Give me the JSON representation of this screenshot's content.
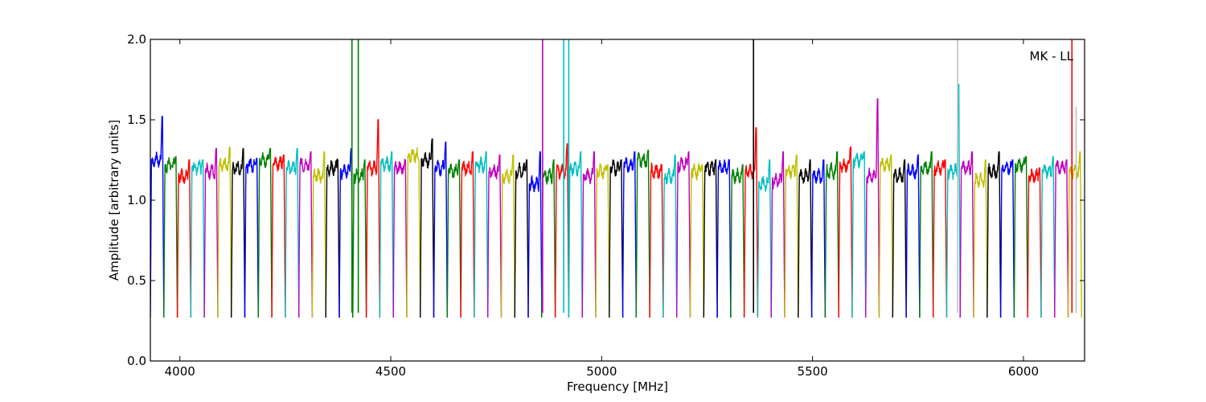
{
  "chart_data": {
    "type": "line",
    "title": "",
    "xlabel": "Frequency [MHz]",
    "ylabel": "Amplitude [arbitrary units]",
    "xlim": [
      3930,
      6145
    ],
    "ylim": [
      0,
      2.0
    ],
    "x_ticks": [
      4000,
      4500,
      5000,
      5500,
      6000
    ],
    "y_ticks": [
      0.0,
      0.5,
      1.0,
      1.5,
      2.0
    ],
    "y_tick_labels": [
      "0.0",
      "0.5",
      "1.0",
      "1.5",
      "2.0"
    ],
    "annotation": "MK - LL",
    "grid": false,
    "legend": "none",
    "series_colors": [
      "#0000ff",
      "#008000",
      "#ff0000",
      "#00bfbf",
      "#bf00bf",
      "#bfbf00",
      "#000000"
    ],
    "band_width_mhz": 32,
    "band_starts_mhz": [
      3930,
      3962,
      3994,
      4026,
      4058,
      4090,
      4122,
      4154,
      4186,
      4218,
      4250,
      4282,
      4314,
      4346,
      4378,
      4410,
      4442,
      4474,
      4506,
      4538,
      4570,
      4602,
      4634,
      4666,
      4698,
      4730,
      4762,
      4794,
      4826,
      4858,
      4890,
      4922,
      4954,
      4986,
      5018,
      5050,
      5082,
      5114,
      5146,
      5178,
      5210,
      5242,
      5274,
      5306,
      5338,
      5370,
      5402,
      5434,
      5466,
      5498,
      5530,
      5562,
      5594,
      5626,
      5658,
      5690,
      5722,
      5754,
      5786,
      5818,
      5850,
      5882,
      5914,
      5946,
      5978,
      6010,
      6042,
      6074,
      6106
    ],
    "band_levels": [
      1.25,
      1.22,
      1.15,
      1.2,
      1.18,
      1.22,
      1.2,
      1.22,
      1.25,
      1.23,
      1.2,
      1.22,
      1.15,
      1.2,
      1.18,
      1.15,
      1.2,
      1.22,
      1.2,
      1.28,
      1.25,
      1.2,
      1.18,
      1.2,
      1.22,
      1.18,
      1.15,
      1.18,
      1.1,
      1.15,
      1.18,
      1.2,
      1.15,
      1.18,
      1.2,
      1.22,
      1.25,
      1.18,
      1.15,
      1.22,
      1.18,
      1.2,
      1.2,
      1.15,
      1.18,
      1.1,
      1.12,
      1.18,
      1.15,
      1.15,
      1.18,
      1.22,
      1.25,
      1.15,
      1.22,
      1.15,
      1.18,
      1.2,
      1.2,
      1.18,
      1.2,
      1.12,
      1.18,
      1.2,
      1.22,
      1.15,
      1.18,
      1.2,
      1.18
    ],
    "band_edge_peaks": [
      1.52,
      1.27,
      1.25,
      1.25,
      1.32,
      1.33,
      1.32,
      1.26,
      1.32,
      1.28,
      1.32,
      1.3,
      1.3,
      1.25,
      1.32,
      1.25,
      1.5,
      1.3,
      1.25,
      1.25,
      1.38,
      1.36,
      1.25,
      1.3,
      1.3,
      1.28,
      1.28,
      1.25,
      1.3,
      1.25,
      1.35,
      1.3,
      1.3,
      1.22,
      1.25,
      1.3,
      1.31,
      1.22,
      1.28,
      1.3,
      1.22,
      1.25,
      1.25,
      1.22,
      1.45,
      1.25,
      1.3,
      1.28,
      1.25,
      1.25,
      1.3,
      1.33,
      1.3,
      1.63,
      1.28,
      1.25,
      1.28,
      1.3,
      1.25,
      1.72,
      1.3,
      1.25,
      1.3,
      1.25,
      1.27,
      1.2,
      1.27,
      1.25,
      1.3
    ],
    "band_floor": 0.27,
    "rfi_spikes": [
      {
        "x": 4408,
        "y": 2.0,
        "color": "#008000"
      },
      {
        "x": 4423,
        "y": 2.0,
        "color": "#008000"
      },
      {
        "x": 4860,
        "y": 2.0,
        "color": "#bf00bf"
      },
      {
        "x": 4910,
        "y": 2.0,
        "color": "#00bfbf"
      },
      {
        "x": 4922,
        "y": 2.0,
        "color": "#00bfbf"
      },
      {
        "x": 5360,
        "y": 2.0,
        "color": "#000000"
      },
      {
        "x": 5844,
        "y": 2.0,
        "color": "#c0c0c0"
      },
      {
        "x": 6115,
        "y": 2.0,
        "color": "#ff0000"
      },
      {
        "x": 6125,
        "y": 1.58,
        "color": "#c0c0c0"
      }
    ]
  }
}
